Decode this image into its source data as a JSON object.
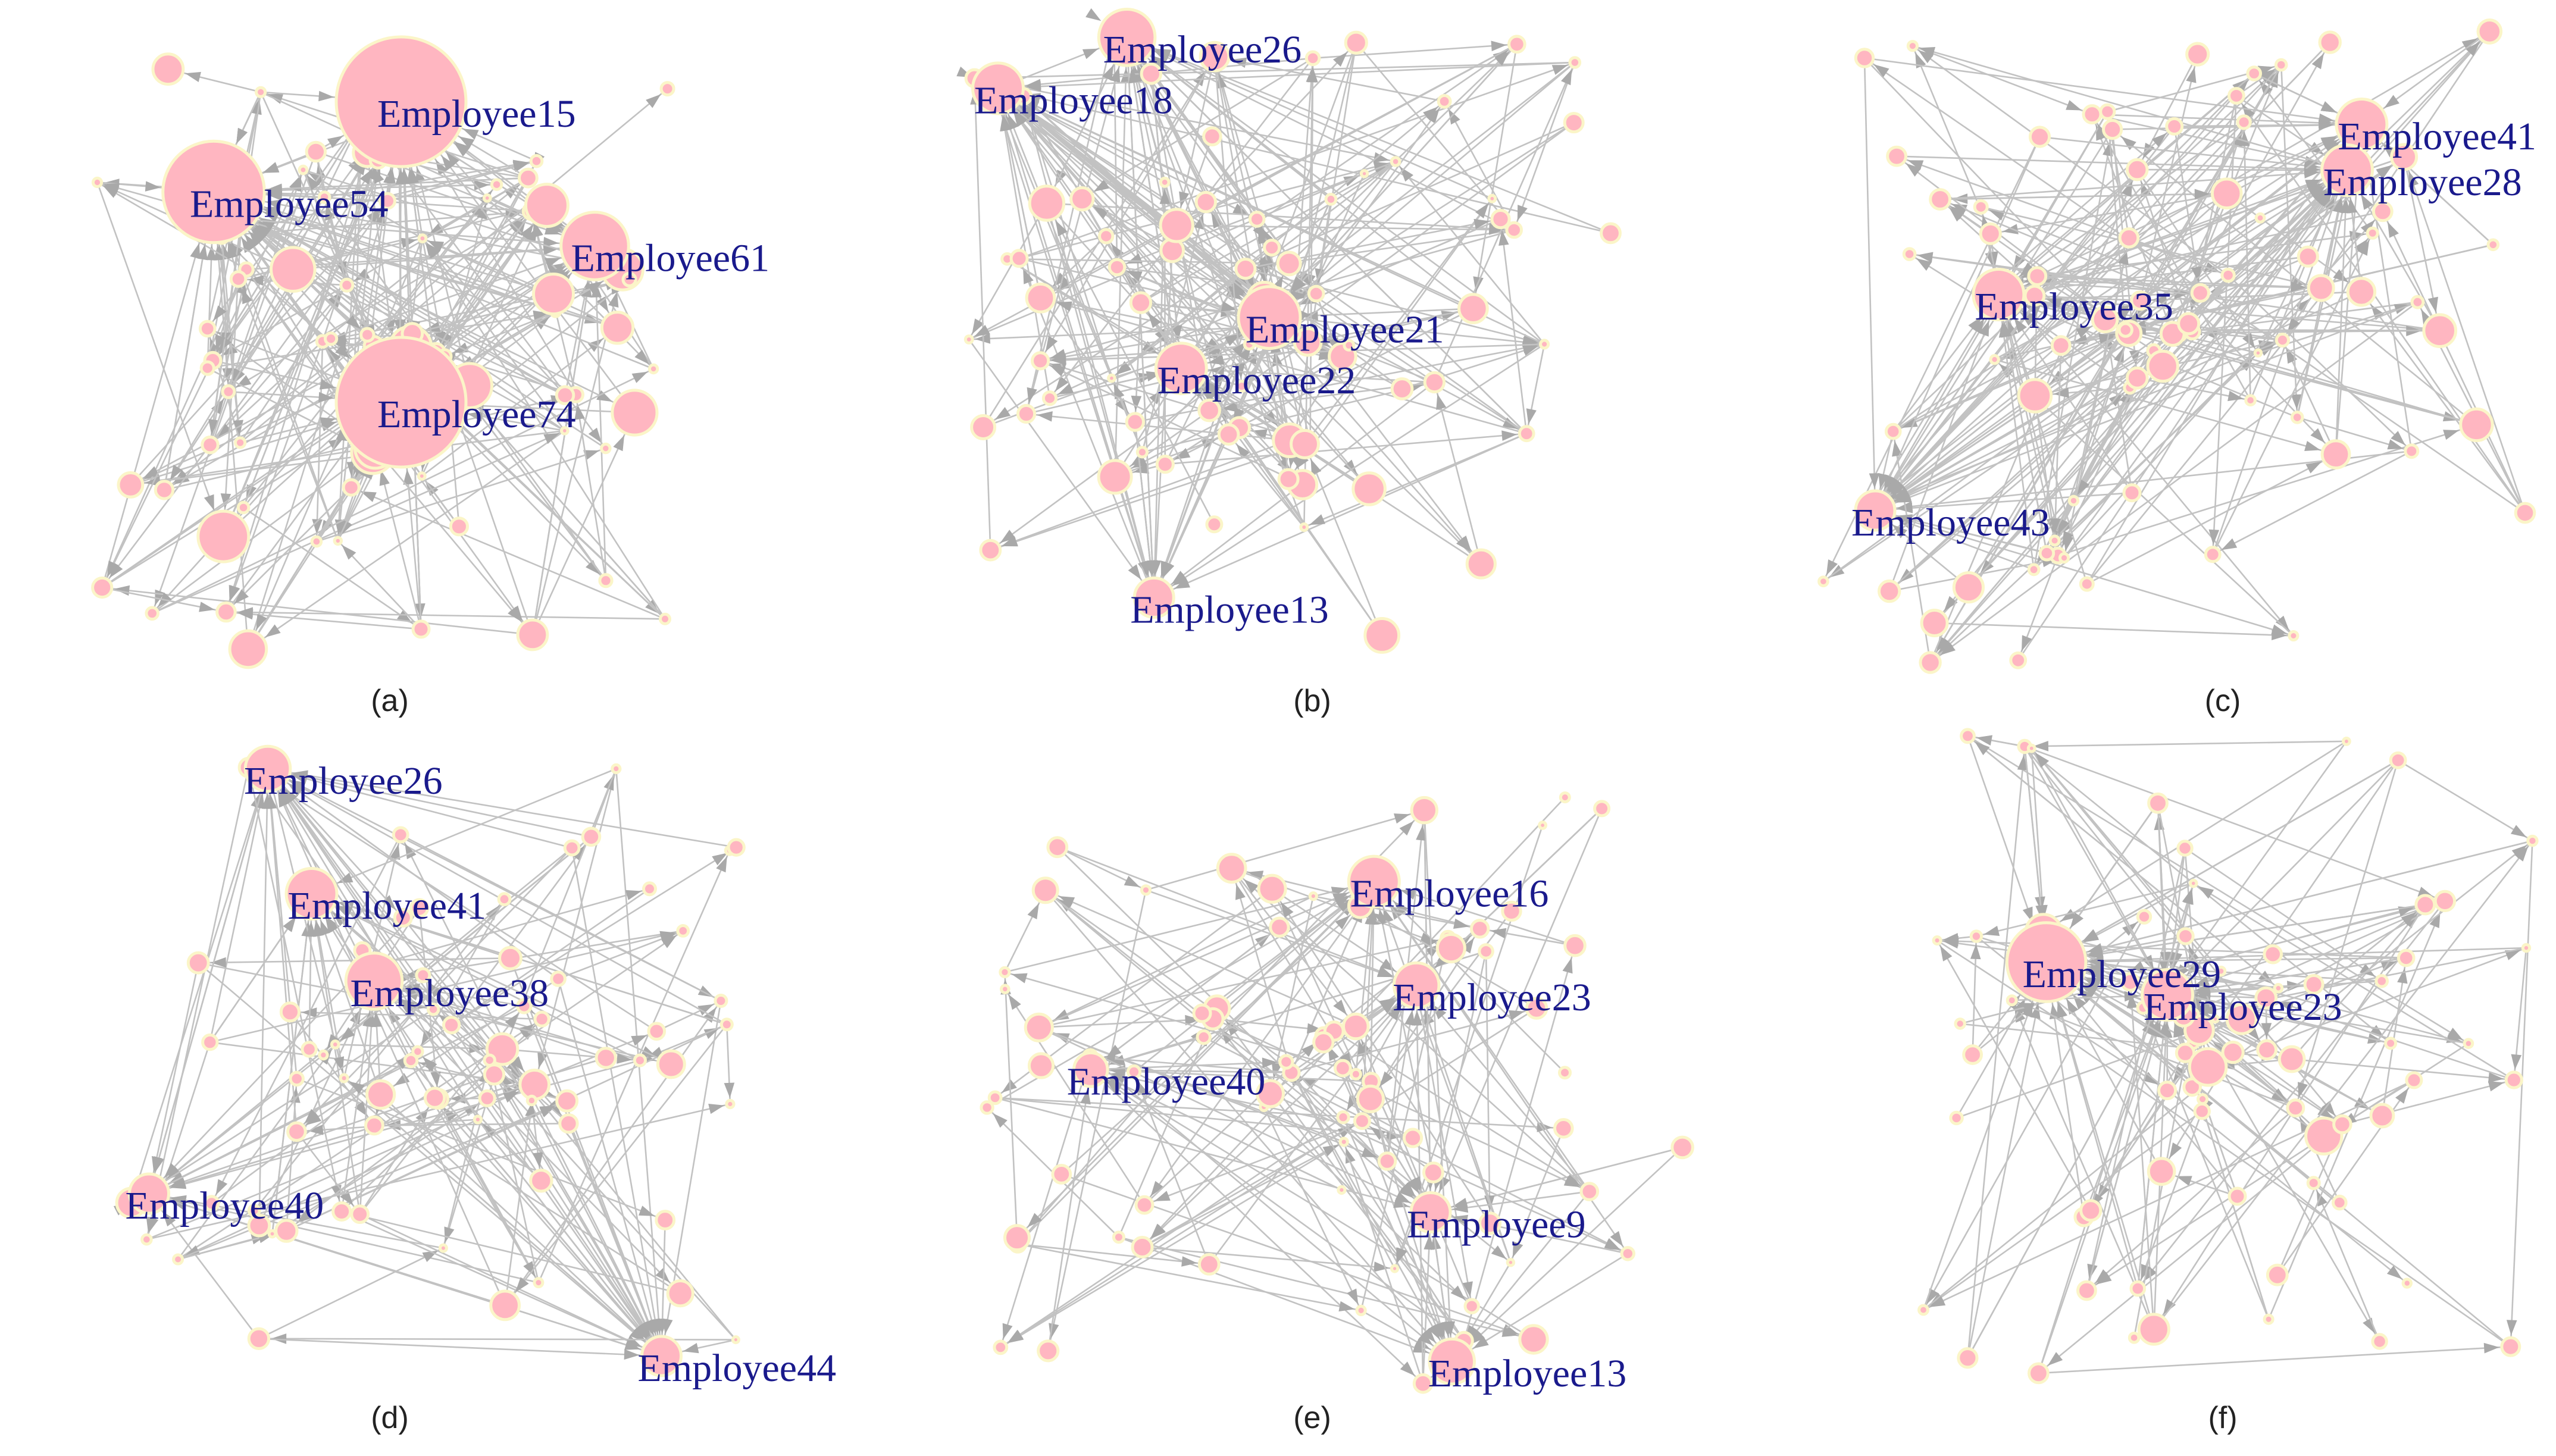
{
  "colors": {
    "background": "#ffffff",
    "edge": "#c2c2c2",
    "arrow_head": "#a9a9a9",
    "node_fill": "#ffb6c1",
    "node_outline": "#fbf5c8",
    "label_text": "#1a1a8c",
    "caption_text": "#222222"
  },
  "panels": [
    {
      "caption": "(a)",
      "labels": [
        {
          "text": "Employee15",
          "node_size": 1.0
        },
        {
          "text": "Employee54",
          "node_size": 0.75
        },
        {
          "text": "Employee61",
          "node_size": 0.45
        },
        {
          "text": "Employee74",
          "node_size": 1.0
        }
      ]
    },
    {
      "caption": "(b)",
      "labels": [
        {
          "text": "Employee26",
          "node_size": 0.35
        },
        {
          "text": "Employee18",
          "node_size": 0.3
        },
        {
          "text": "Employee21",
          "node_size": 0.4
        },
        {
          "text": "Employee22",
          "node_size": 0.3
        },
        {
          "text": "Employee13",
          "node_size": 0.2
        }
      ]
    },
    {
      "caption": "(c)",
      "labels": [
        {
          "text": "Employee41",
          "node_size": 0.3
        },
        {
          "text": "Employee28",
          "node_size": 0.3
        },
        {
          "text": "Employee35",
          "node_size": 0.3
        },
        {
          "text": "Employee43",
          "node_size": 0.2
        }
      ]
    },
    {
      "caption": "(d)",
      "labels": [
        {
          "text": "Employee26",
          "node_size": 0.25
        },
        {
          "text": "Employee41",
          "node_size": 0.3
        },
        {
          "text": "Employee38",
          "node_size": 0.35
        },
        {
          "text": "Employee40",
          "node_size": 0.2
        },
        {
          "text": "Employee44",
          "node_size": 0.2
        }
      ]
    },
    {
      "caption": "(e)",
      "labels": [
        {
          "text": "Employee16",
          "node_size": 0.3
        },
        {
          "text": "Employee23",
          "node_size": 0.25
        },
        {
          "text": "Employee40",
          "node_size": 0.15
        },
        {
          "text": "Employee9",
          "node_size": 0.2
        },
        {
          "text": "Employee13",
          "node_size": 0.25
        }
      ]
    },
    {
      "caption": "(f)",
      "labels": [
        {
          "text": "Employee29",
          "node_size": 0.55
        },
        {
          "text": "Employee23",
          "node_size": 0.3
        }
      ]
    }
  ]
}
